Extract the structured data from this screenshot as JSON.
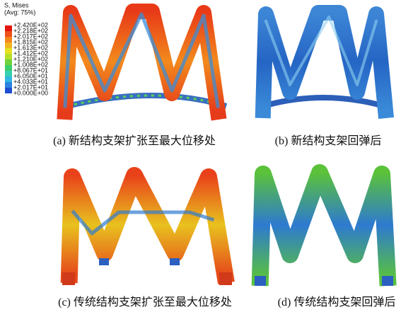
{
  "legend": {
    "title": "S, Mises",
    "subtitle": "(Avg: 75%)",
    "labels": [
      "+2.420E+02",
      "+2.218E+02",
      "+2.017E+02",
      "+1.815E+02",
      "+1.613E+02",
      "+1.412E+02",
      "+1.210E+02",
      "+1.008E+02",
      "+8.067E+01",
      "+6.050E+01",
      "+4.033E+01",
      "+2.017E+01",
      "+0.000E+00"
    ]
  },
  "panels": [
    {
      "caption": "(a) 新结构支架扩张至最大位移处"
    },
    {
      "caption": "(b) 新结构支架回弹后"
    },
    {
      "caption": "(c) 传统结构支架扩张至最大位移处"
    },
    {
      "caption": "(d) 传统结构支架回弹后"
    }
  ]
}
